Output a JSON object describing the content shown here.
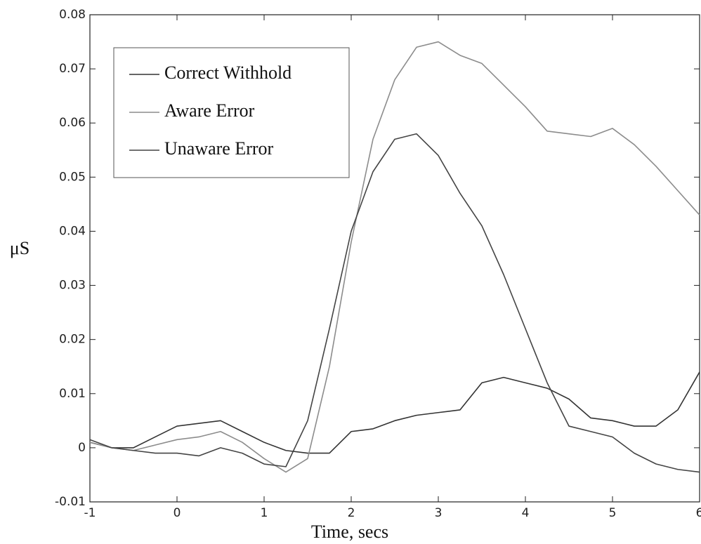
{
  "chart_data": {
    "type": "line",
    "x_label": "Time,  secs",
    "y_label": "μS",
    "x": [
      -1,
      -0.75,
      -0.5,
      -0.25,
      0,
      0.25,
      0.5,
      0.75,
      1,
      1.25,
      1.5,
      1.75,
      2,
      2.25,
      2.5,
      2.75,
      3,
      3.25,
      3.5,
      3.75,
      4,
      4.25,
      4.5,
      4.75,
      5,
      5.25,
      5.5,
      5.75,
      6
    ],
    "series": [
      {
        "name": "Correct Withhold",
        "color": "#333333",
        "values": [
          0.001,
          0.0,
          0.0,
          0.002,
          0.004,
          0.0045,
          0.005,
          0.003,
          0.001,
          -0.0005,
          -0.001,
          -0.001,
          0.003,
          0.0035,
          0.005,
          0.006,
          0.0065,
          0.007,
          0.012,
          0.013,
          0.012,
          0.011,
          0.009,
          0.0055,
          0.005,
          0.004,
          0.004,
          0.007,
          0.014
        ]
      },
      {
        "name": "Aware Error",
        "color": "#8c8c8c",
        "values": [
          0.001,
          0.0,
          -0.0005,
          0.0005,
          0.0015,
          0.002,
          0.003,
          0.001,
          -0.002,
          -0.0045,
          -0.002,
          0.015,
          0.038,
          0.057,
          0.068,
          0.074,
          0.075,
          0.0725,
          0.071,
          0.067,
          0.063,
          0.0585,
          0.058,
          0.0575,
          0.059,
          0.056,
          0.052,
          0.0475,
          0.043
        ]
      },
      {
        "name": "Unaware Error",
        "color": "#444444",
        "values": [
          0.0015,
          0.0,
          -0.0005,
          -0.001,
          -0.001,
          -0.0015,
          0.0,
          -0.001,
          -0.003,
          -0.0035,
          0.005,
          0.022,
          0.04,
          0.051,
          0.057,
          0.058,
          0.054,
          0.047,
          0.041,
          0.032,
          0.022,
          0.012,
          0.004,
          0.003,
          0.002,
          -0.001,
          -0.003,
          -0.004,
          -0.0045
        ]
      }
    ],
    "xlim": [
      -1,
      6
    ],
    "xticks": [
      -1,
      0,
      1,
      2,
      3,
      4,
      5,
      6
    ],
    "ylim": [
      -0.01,
      0.08
    ],
    "yticks": [
      -0.01,
      0,
      0.01,
      0.02,
      0.03,
      0.04,
      0.05,
      0.06,
      0.07,
      0.08
    ],
    "legend": "upper left"
  }
}
